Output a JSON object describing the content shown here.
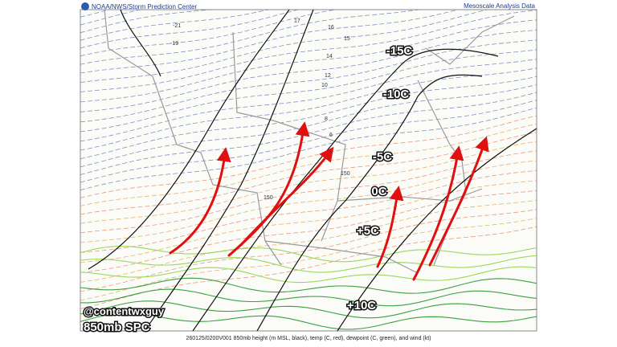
{
  "header": {
    "source": "NOAA/NWS/Storm Prediction Center",
    "product": "Mesoscale Analysis Data"
  },
  "temperature_labels": [
    "-15C",
    "-10C",
    "-5C",
    "0C",
    "+5C",
    "+10C"
  ],
  "contour_labels": [
    "-21",
    "-19",
    "17",
    "16",
    "15",
    "14",
    "12",
    "10",
    "8",
    "6",
    "150",
    "150"
  ],
  "watermark": {
    "handle": "@contentwxguy",
    "title": "850mb SPC"
  },
  "footer": "260125/0200V001 850mb height (m MSL, black), temp (C, red), dewpoint (C, green), and wind (kt)"
}
